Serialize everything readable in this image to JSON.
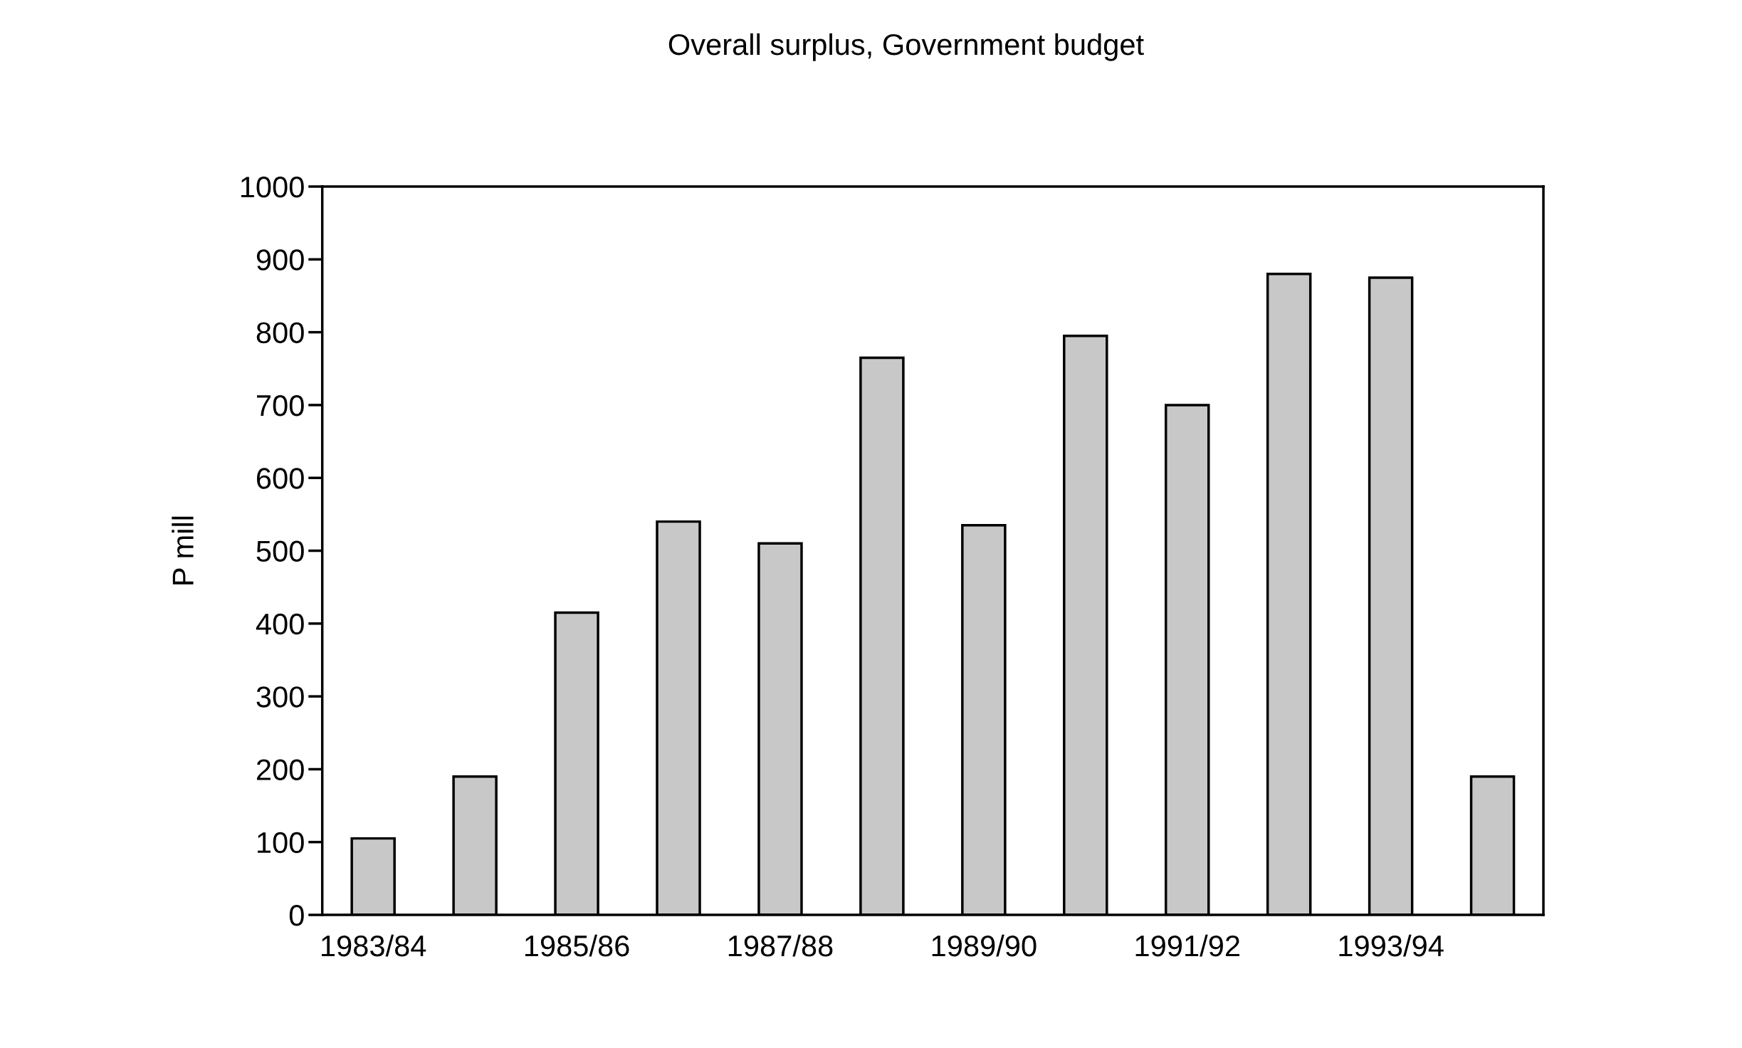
{
  "chart_data": {
    "type": "bar",
    "title": "Overall surplus, Government budget",
    "ylabel": "P mill",
    "categories": [
      "1983/84",
      null,
      "1985/86",
      null,
      "1987/88",
      null,
      "1989/90",
      null,
      "1991/92",
      null,
      "1993/94",
      null
    ],
    "values": [
      105,
      190,
      415,
      540,
      510,
      765,
      535,
      795,
      700,
      880,
      875,
      190
    ],
    "color": "#c8c8c8",
    "ylim": [
      0,
      1000
    ],
    "yticks": [
      0,
      100,
      200,
      300,
      400,
      500,
      600,
      700,
      800,
      900,
      1000
    ],
    "grid": false,
    "legend": false
  }
}
